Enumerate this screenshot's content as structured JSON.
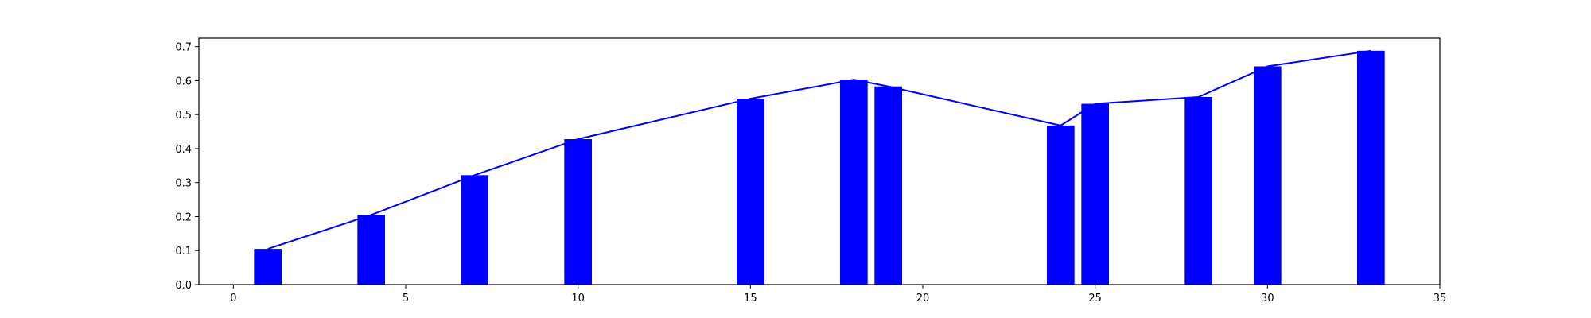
{
  "chart_data": {
    "type": "bar",
    "title": "",
    "xlabel": "",
    "ylabel": "",
    "xlim": [
      -1,
      35
    ],
    "ylim": [
      0,
      0.725
    ],
    "grid": false,
    "legend": "none",
    "bar_width": 0.8,
    "x_ticks": [
      0,
      5,
      10,
      15,
      20,
      25,
      30,
      35
    ],
    "y_ticks": [
      0.0,
      0.1,
      0.2,
      0.3,
      0.4,
      0.5,
      0.6,
      0.7
    ],
    "x_tick_labels": [
      "0",
      "5",
      "10",
      "15",
      "20",
      "25",
      "30",
      "35"
    ],
    "y_tick_labels": [
      "0.0",
      "0.1",
      "0.2",
      "0.3",
      "0.4",
      "0.5",
      "0.6",
      "0.7"
    ],
    "x": [
      1,
      4,
      7,
      10,
      15,
      18,
      19,
      24,
      25,
      28,
      30,
      33
    ],
    "values": [
      0.105,
      0.205,
      0.322,
      0.428,
      0.547,
      0.603,
      0.583,
      0.468,
      0.532,
      0.552,
      0.642,
      0.688
    ],
    "line": {
      "x": [
        1,
        4,
        7,
        10,
        15,
        18,
        19,
        24,
        25,
        28,
        30,
        33
      ],
      "values": [
        0.105,
        0.205,
        0.322,
        0.428,
        0.547,
        0.603,
        0.583,
        0.468,
        0.532,
        0.552,
        0.642,
        0.688
      ]
    },
    "colors": {
      "bar": "#0000ff",
      "line": "#0000ff",
      "axis": "#000000"
    }
  }
}
